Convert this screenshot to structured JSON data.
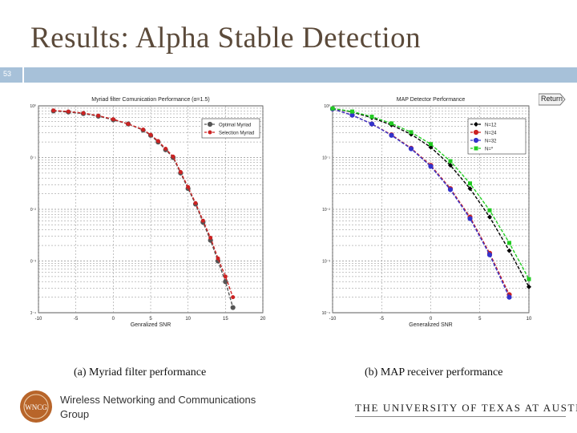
{
  "slide": {
    "title": "Results: Alpha Stable Detection",
    "slide_number": "53",
    "return_label": "Return",
    "footer_group": "Wireless Networking and Communications Group",
    "logo_text": "WNCG",
    "university": "THE UNIVERSITY OF TEXAS AT AUSTIN",
    "accent_color": "#a7c1d9",
    "title_color": "#5b4a3a",
    "caption_a": "(a)  Myriad filter performance",
    "caption_b": "(b)  MAP receiver performance"
  },
  "chart_data": [
    {
      "type": "line",
      "title": "Myriad filter Comunication Performance (α=1.5)",
      "xlabel": "Genralized SNR",
      "ylabel": "",
      "xlim": [
        -10,
        20
      ],
      "ylim": [
        -4,
        0
      ],
      "log_y": true,
      "x_ticks": [
        "-10",
        "-5",
        "0",
        "5",
        "10",
        "15",
        "20"
      ],
      "y_ticks": [
        "10⁰",
        "10⁻¹",
        "10⁻²",
        "10⁻³",
        "10⁻⁴"
      ],
      "grid": true,
      "legend_position": "top-right",
      "series": [
        {
          "name": "Optimal Myriad",
          "color": "#555555",
          "marker": "circle",
          "x": [
            -8,
            -6,
            -4,
            -2,
            0,
            2,
            4,
            5,
            6,
            7,
            8,
            9,
            10,
            11,
            12,
            13,
            14,
            15,
            16
          ],
          "y": [
            -0.1,
            -0.12,
            -0.15,
            -0.2,
            -0.27,
            -0.35,
            -0.47,
            -0.57,
            -0.7,
            -0.85,
            -1.0,
            -1.3,
            -1.6,
            -1.9,
            -2.25,
            -2.6,
            -3.0,
            -3.4,
            -3.9
          ]
        },
        {
          "name": "Selection Myriad",
          "color": "#cc2222",
          "marker": "star",
          "x": [
            -8,
            -6,
            -4,
            -2,
            0,
            2,
            4,
            5,
            6,
            7,
            8,
            9,
            10,
            11,
            12,
            13,
            14,
            15,
            16
          ],
          "y": [
            -0.09,
            -0.11,
            -0.14,
            -0.19,
            -0.26,
            -0.35,
            -0.46,
            -0.56,
            -0.68,
            -0.83,
            -0.98,
            -1.28,
            -1.57,
            -1.88,
            -2.22,
            -2.55,
            -2.95,
            -3.3,
            -3.7
          ]
        }
      ]
    },
    {
      "type": "line",
      "title": "MAP Detector Performance",
      "xlabel": "Generalized SNR",
      "ylabel": "",
      "xlim": [
        -10,
        10
      ],
      "ylim": [
        -4,
        0
      ],
      "log_y": true,
      "x_ticks": [
        "-10",
        "-5",
        "0",
        "5",
        "10"
      ],
      "y_ticks": [
        "10⁰",
        "10⁻¹",
        "10⁻²",
        "10⁻³",
        "10⁻⁴"
      ],
      "grid": true,
      "legend_position": "top-right",
      "series": [
        {
          "name": "N=12",
          "color": "#000000",
          "marker": "diamond",
          "x": [
            -10,
            -8,
            -6,
            -4,
            -2,
            0,
            2,
            4,
            6,
            8,
            10
          ],
          "y": [
            -0.05,
            -0.12,
            -0.23,
            -0.37,
            -0.55,
            -0.8,
            -1.15,
            -1.6,
            -2.15,
            -2.8,
            -3.5
          ]
        },
        {
          "name": "N=24",
          "color": "#cc2222",
          "marker": "circle",
          "x": [
            -10,
            -8,
            -6,
            -4,
            -2,
            0,
            2,
            4,
            6,
            8
          ],
          "y": [
            -0.06,
            -0.18,
            -0.35,
            -0.56,
            -0.82,
            -1.15,
            -1.6,
            -2.15,
            -2.85,
            -3.65
          ]
        },
        {
          "name": "N=32",
          "color": "#3333cc",
          "marker": "circle",
          "x": [
            -10,
            -8,
            -6,
            -4,
            -2,
            0,
            2,
            4,
            6,
            8
          ],
          "y": [
            -0.06,
            -0.18,
            -0.35,
            -0.57,
            -0.83,
            -1.17,
            -1.62,
            -2.18,
            -2.88,
            -3.7
          ]
        },
        {
          "name": "N=*",
          "color": "#22cc22",
          "marker": "square",
          "x": [
            -10,
            -8,
            -6,
            -4,
            -2,
            0,
            2,
            4,
            6,
            8,
            10
          ],
          "y": [
            -0.05,
            -0.11,
            -0.21,
            -0.34,
            -0.51,
            -0.74,
            -1.07,
            -1.5,
            -2.02,
            -2.65,
            -3.35
          ]
        }
      ]
    }
  ]
}
